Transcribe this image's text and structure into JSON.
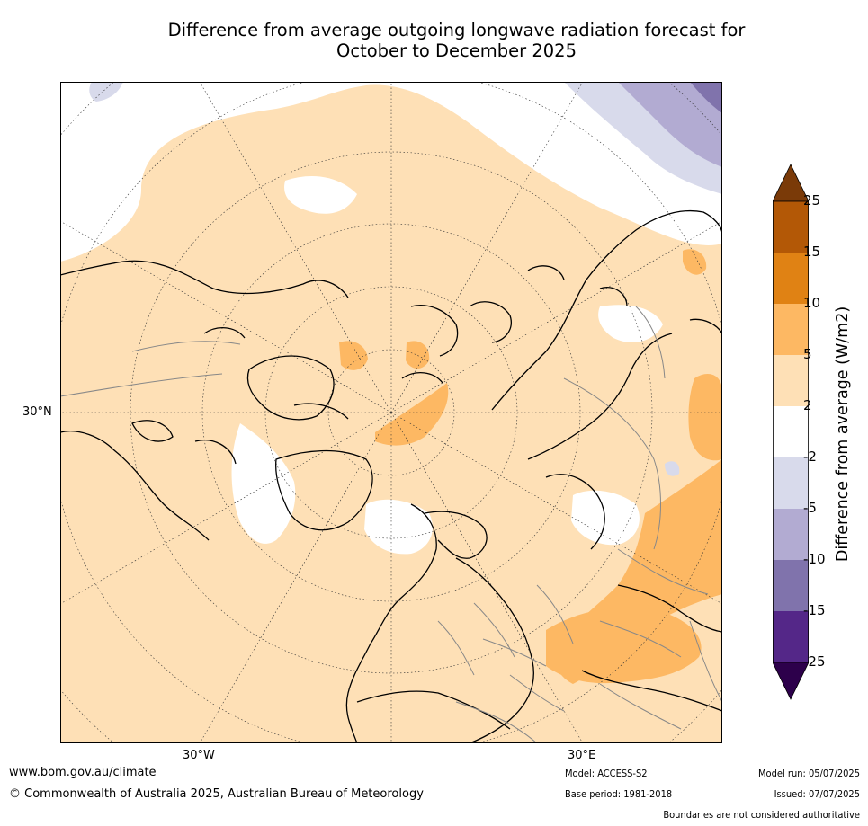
{
  "title": {
    "line1": "Difference from average outgoing longwave radiation forecast for",
    "line2": "October to December 2025"
  },
  "map": {
    "projection": "north-polar-stereographic",
    "lat_labels": [
      "30°N"
    ],
    "lon_labels": [
      "30°W",
      "30°E"
    ]
  },
  "colorbar": {
    "title": "Difference from average (W/m2)",
    "ticks": [
      "25",
      "15",
      "10",
      "5",
      "2",
      "-2",
      "-5",
      "-10",
      "-15",
      "-25"
    ],
    "bins": [
      {
        "range": "above 25",
        "color": "#7a3a08"
      },
      {
        "range": "15 to 25",
        "color": "#b35806"
      },
      {
        "range": "10 to 15",
        "color": "#e08214"
      },
      {
        "range": "5 to 10",
        "color": "#fdb863"
      },
      {
        "range": "2 to 5",
        "color": "#fee0b6"
      },
      {
        "range": "-2 to 2",
        "color": "#ffffff"
      },
      {
        "range": "-5 to -2",
        "color": "#d8daeb"
      },
      {
        "range": "-10 to -5",
        "color": "#b2abd2"
      },
      {
        "range": "-15 to -10",
        "color": "#8073ac"
      },
      {
        "range": "-25 to -15",
        "color": "#542788"
      },
      {
        "range": "below -25",
        "color": "#2d004b"
      }
    ]
  },
  "footer": {
    "url": "www.bom.gov.au/climate",
    "copyright": "© Commonwealth of Australia 2025, Australian Bureau of Meteorology",
    "model": "Model: ACCESS-S2",
    "base_period": "Base period: 1981-2018",
    "model_run": "Model run: 05/07/2025",
    "issued": "Issued: 07/07/2025",
    "disclaimer": "Boundaries are not considered authoritative"
  }
}
